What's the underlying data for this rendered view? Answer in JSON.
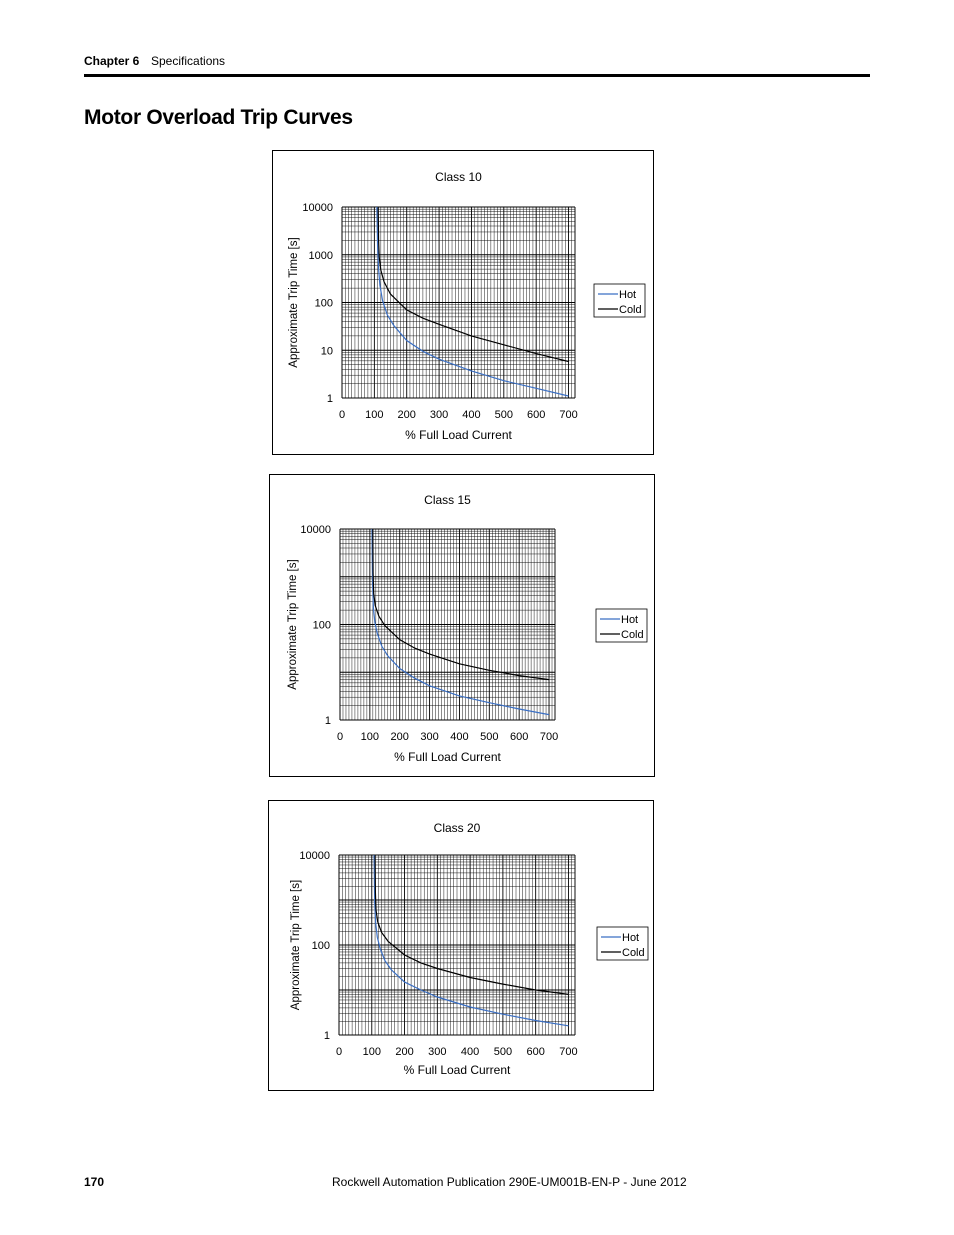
{
  "header": {
    "chapter": "Chapter 6",
    "section": "Specifications"
  },
  "title": "Motor Overload Trip Curves",
  "footer": {
    "page_number": "170",
    "publication": "Rockwell Automation Publication 290E-UM001B-EN-P - June 2012"
  },
  "colors": {
    "hot": "#3a6fc4",
    "cold": "#000000",
    "grid": "#000000"
  },
  "chart_data": [
    {
      "type": "line",
      "title": "Class 10",
      "xlabel": "% Full Load Current",
      "ylabel": "Approximate Trip Time [s]",
      "xlim": [
        0,
        720
      ],
      "ylim": [
        1,
        10000
      ],
      "yscale": "log",
      "xticks": [
        "0",
        "100",
        "200",
        "300",
        "400",
        "500",
        "600",
        "700"
      ],
      "yticks": [
        "1",
        "10",
        "100",
        "1000",
        "10000"
      ],
      "grid": true,
      "legend_position": "right",
      "series": [
        {
          "name": "Hot",
          "color": "#3a6fc4",
          "x": [
            108,
            110,
            113,
            117,
            125,
            140,
            160,
            200,
            250,
            300,
            400,
            500,
            600,
            700
          ],
          "y": [
            10000,
            1500,
            500,
            230,
            110,
            55,
            33,
            16,
            9.5,
            6.5,
            3.7,
            2.3,
            1.6,
            1.1
          ]
        },
        {
          "name": "Cold",
          "color": "#000000",
          "x": [
            112,
            113,
            115,
            120,
            130,
            150,
            200,
            250,
            300,
            400,
            500,
            600,
            700
          ],
          "y": [
            10000,
            2000,
            900,
            480,
            270,
            150,
            70,
            47,
            35,
            20,
            13,
            8.5,
            5.8
          ]
        }
      ]
    },
    {
      "type": "line",
      "title": "Class 15",
      "xlabel": "% Full Load Current",
      "ylabel": "Approximate Trip Time [s]",
      "xlim": [
        0,
        720
      ],
      "ylim": [
        1,
        10000
      ],
      "yscale": "log",
      "xticks": [
        "0",
        "100",
        "200",
        "300",
        "400",
        "500",
        "600",
        "700"
      ],
      "yticks": [
        "1",
        "100",
        "10000"
      ],
      "grid": true,
      "legend_position": "right",
      "series": [
        {
          "name": "Hot",
          "color": "#3a6fc4",
          "x": [
            107,
            109,
            112,
            117,
            125,
            140,
            160,
            200,
            250,
            300,
            400,
            500,
            600,
            700
          ],
          "y": [
            10000,
            800,
            220,
            110,
            65,
            35,
            22,
            12,
            7.5,
            5.2,
            3.2,
            2.3,
            1.7,
            1.3
          ]
        },
        {
          "name": "Cold",
          "color": "#000000",
          "x": [
            110,
            111,
            113,
            118,
            130,
            150,
            200,
            250,
            300,
            400,
            500,
            600,
            700
          ],
          "y": [
            10000,
            1200,
            450,
            250,
            150,
            95,
            48,
            32,
            24,
            15,
            11,
            8.5,
            7
          ]
        }
      ]
    },
    {
      "type": "line",
      "title": "Class 20",
      "xlabel": "% Full Load Current",
      "ylabel": "Approximate Trip Time [s]",
      "xlim": [
        0,
        720
      ],
      "ylim": [
        1,
        10000
      ],
      "yscale": "log",
      "xticks": [
        "0",
        "100",
        "200",
        "300",
        "400",
        "500",
        "600",
        "700"
      ],
      "yticks": [
        "1",
        "100",
        "10000"
      ],
      "grid": true,
      "legend_position": "right",
      "series": [
        {
          "name": "Hot",
          "color": "#3a6fc4",
          "x": [
            107,
            109,
            112,
            117,
            125,
            140,
            160,
            200,
            250,
            300,
            400,
            500,
            600,
            700
          ],
          "y": [
            10000,
            900,
            300,
            150,
            85,
            45,
            28,
            15,
            10,
            7,
            4.2,
            2.9,
            2.1,
            1.6
          ]
        },
        {
          "name": "Cold",
          "color": "#000000",
          "x": [
            110,
            111,
            113,
            118,
            130,
            150,
            200,
            250,
            300,
            400,
            500,
            600,
            700
          ],
          "y": [
            10000,
            1500,
            600,
            330,
            190,
            120,
            60,
            40,
            30,
            19,
            13.5,
            10,
            8
          ]
        }
      ]
    }
  ]
}
